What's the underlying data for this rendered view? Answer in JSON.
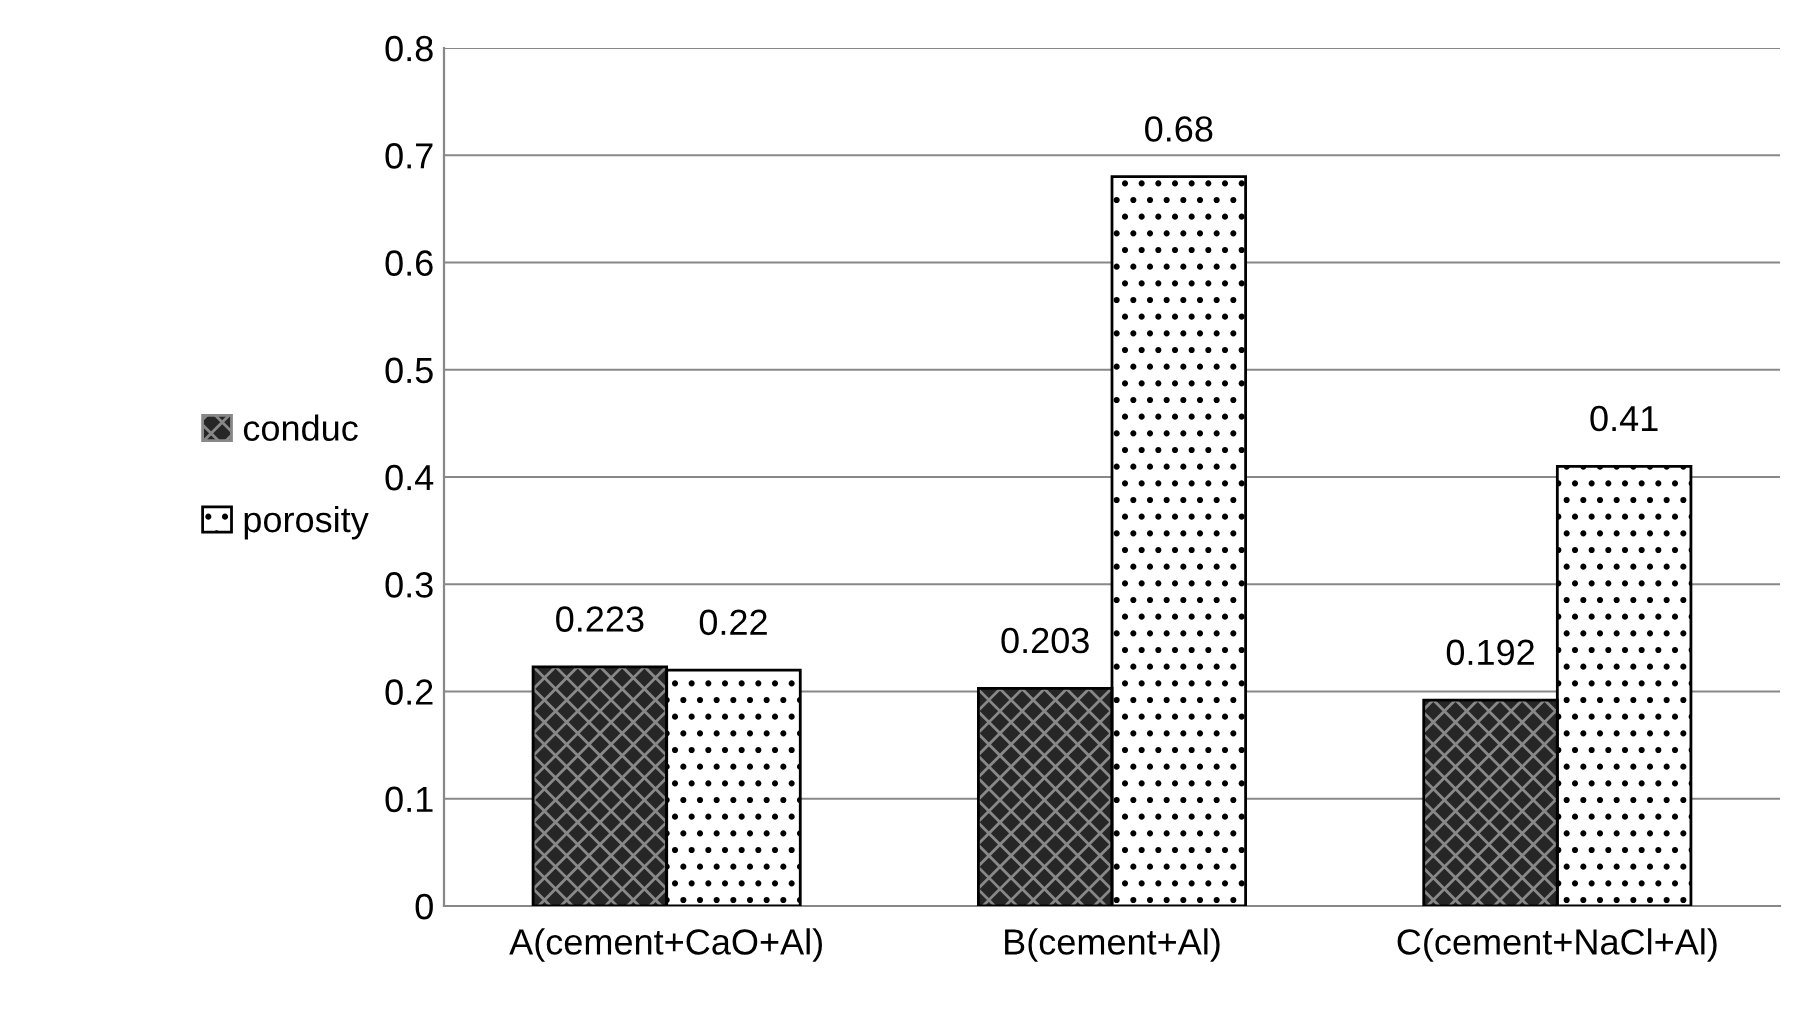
{
  "chart_data": {
    "type": "bar",
    "categories": [
      "A(cement+CaO+Al)",
      "B(cement+Al)",
      "C(cement+NaCl+Al)"
    ],
    "series": [
      {
        "name": "conduc",
        "color": "#262626",
        "values": [
          0.223,
          0.203,
          0.192
        ]
      },
      {
        "name": "porosity",
        "color": "#ffffff",
        "values": [
          0.22,
          0.68,
          0.41
        ]
      }
    ],
    "ylim": [
      0,
      0.8
    ],
    "yticks": [
      0,
      0.1,
      0.2,
      0.3,
      0.4,
      0.5,
      0.6,
      0.7,
      0.8
    ],
    "grid": "y",
    "legend": "left",
    "data_labels": true
  }
}
